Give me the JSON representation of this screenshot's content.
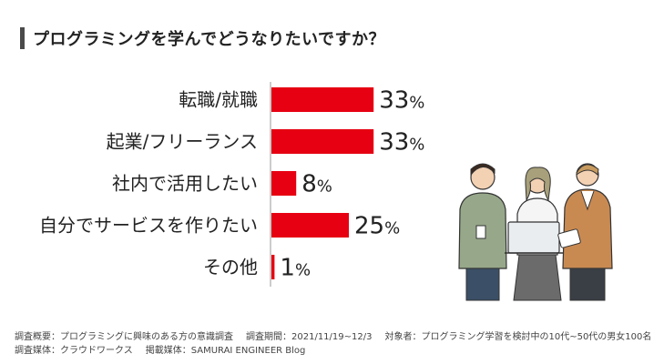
{
  "title": "プログラミングを学んでどうなりたいですか？",
  "percent_unit": "%",
  "chart_data": {
    "type": "bar",
    "orientation": "horizontal",
    "categories": [
      "転職/就職",
      "起業/フリーランス",
      "社内で活用したい",
      "自分でサービスを作りたい",
      "その他"
    ],
    "values": [
      33,
      33,
      8,
      25,
      1
    ],
    "xlim": [
      0,
      100
    ],
    "bar_color": "#e60012",
    "grid": false,
    "legend": "none"
  },
  "footer": {
    "line1_a": "調査概要：プログラミングに興味のある方の意識調査",
    "line1_b": "調査期間：2021/11/19~12/3",
    "line1_c": "対象者：プログラミング学習を検討中の10代~50代の男女100名",
    "line2_a": "調査媒体：クラウドワークス",
    "line2_b": "掲載媒体：SAMURAI ENGINEER Blog"
  },
  "illustration": "three-people-with-laptop-illustration"
}
